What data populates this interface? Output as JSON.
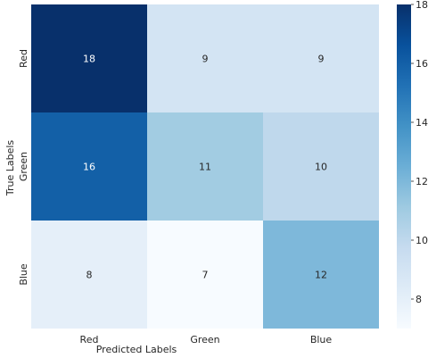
{
  "chart_data": {
    "type": "heatmap",
    "title": "",
    "xlabel": "Predicted Labels",
    "ylabel": "True Labels",
    "x_categories": [
      "Red",
      "Green",
      "Blue"
    ],
    "y_categories": [
      "Red",
      "Green",
      "Blue"
    ],
    "values": [
      [
        18,
        9,
        9
      ],
      [
        16,
        11,
        10
      ],
      [
        8,
        7,
        12
      ]
    ],
    "annotations": true,
    "colormap": "Blues",
    "colorbar": {
      "range": [
        7,
        18
      ],
      "ticks": [
        8,
        10,
        12,
        14,
        16,
        18
      ]
    },
    "grid": false
  }
}
